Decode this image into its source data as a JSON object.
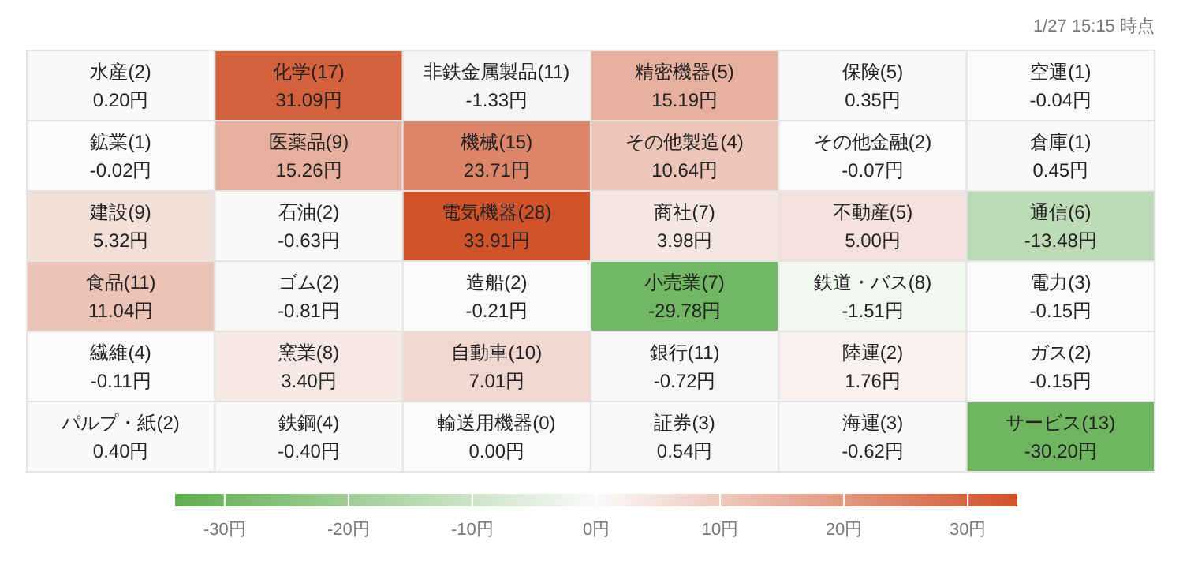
{
  "chart_data": {
    "type": "heatmap",
    "annotations": [
      "1/27 15:15 時点"
    ],
    "categories": [
      null,
      null,
      null,
      null,
      null,
      null
    ],
    "y_categories": [
      null,
      null,
      null,
      null,
      null,
      null
    ],
    "cells": [
      [
        0.2,
        31.09,
        -1.33,
        15.19,
        0.35,
        -0.04
      ],
      [
        -0.02,
        15.26,
        23.71,
        10.64,
        -0.07,
        0.45
      ],
      [
        5.32,
        -0.63,
        33.91,
        3.98,
        5.0,
        -13.48
      ],
      [
        11.04,
        -0.81,
        -0.21,
        -29.78,
        -1.51,
        -0.15
      ],
      [
        -0.11,
        3.4,
        7.01,
        -0.72,
        1.76,
        -0.15
      ],
      [
        0.4,
        -0.4,
        0.0,
        0.54,
        -0.62,
        -30.2
      ]
    ],
    "cell_labels": [
      [
        "水産(2)\n0.20円",
        "化学(17)\n31.09円",
        "非鉄金属製品(11)\n-1.33円",
        "精密機器(5)\n15.19円",
        "保険(5)\n0.35円",
        "空運(1)\n-0.04円"
      ],
      [
        "鉱業(1)\n-0.02円",
        "医薬品(9)\n15.26円",
        "機械(15)\n23.71円",
        "その他製造(4)\n10.64円",
        "その他金融(2)\n-0.07円",
        "倉庫(1)\n0.45円"
      ],
      [
        "建設(9)\n5.32円",
        "石油(2)\n-0.63円",
        "電気機器(28)\n33.91円",
        "商社(7)\n3.98円",
        "不動産(5)\n5.00円",
        "通信(6)\n-13.48円"
      ],
      [
        "食品(11)\n11.04円",
        "ゴム(2)\n-0.81円",
        "造船(2)\n-0.21円",
        "小売業(7)\n-29.78円",
        "鉄道・バス(8)\n-1.51円",
        "電力(3)\n-0.15円"
      ],
      [
        "繊維(4)\n-0.11円",
        "窯業(8)\n3.40円",
        "自動車(10)\n7.01円",
        "銀行(11)\n-0.72円",
        "陸運(2)\n1.76円",
        "ガス(2)\n-0.15円"
      ],
      [
        "パルプ・紙(2)\n0.40円",
        "鉄鋼(4)\n-0.40円",
        "輸送用機器(0)\n0.00円",
        "証券(3)\n0.54円",
        "海運(3)\n-0.62円",
        "サービス(13)\n-30.20円"
      ]
    ],
    "clim": [
      -34,
      34
    ],
    "cticks": [
      {
        "value": -30,
        "label": "-30円"
      },
      {
        "value": -20,
        "label": "-20円"
      },
      {
        "value": -10,
        "label": "-10円"
      },
      {
        "value": 0,
        "label": "0円"
      },
      {
        "value": 10,
        "label": "10円"
      },
      {
        "value": 20,
        "label": "20円"
      },
      {
        "value": 30,
        "label": "30円"
      }
    ]
  }
}
